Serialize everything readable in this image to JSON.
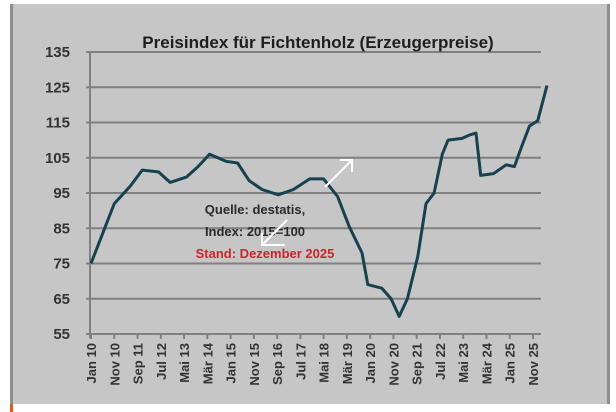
{
  "chart_data": {
    "type": "line",
    "title": "Preisindex für Fichtenholz  (Erzeugerpreise)",
    "xlabel": "",
    "ylabel": "",
    "ylim": [
      55,
      135
    ],
    "yticks": [
      55,
      65,
      75,
      85,
      95,
      105,
      115,
      125,
      135
    ],
    "x_unit": "months since Jan 2010",
    "xlim": [
      0,
      196
    ],
    "xtick_positions": [
      0,
      10,
      20,
      30,
      40,
      50,
      60,
      70,
      80,
      90,
      100,
      110,
      120,
      130,
      140,
      150,
      160,
      170,
      180,
      190
    ],
    "xtick_labels": [
      "Jan 10",
      "Nov 10",
      "Sep 11",
      "Jul 12",
      "Mai 13",
      "Mär 14",
      "Jan 15",
      "Nov 15",
      "Sep 16",
      "Jul 17",
      "Mai 18",
      "Mär 19",
      "Jan 20",
      "Nov 20",
      "Sep 21",
      "Jul 22",
      "Mai 23",
      "Mär 24",
      "Jan 25",
      "Nov 25"
    ],
    "grid": true,
    "series": [
      {
        "name": "Preisindex Fichtenholz",
        "color": "#17414f",
        "x": [
          0,
          10,
          17,
          22,
          29,
          34,
          41,
          46,
          51,
          58,
          63,
          68,
          73.5,
          80.5,
          87,
          94,
          100,
          106,
          111,
          116.5,
          119,
          125,
          129,
          132.5,
          136,
          140.5,
          144,
          147.5,
          151,
          153.5,
          159.5,
          163,
          165.5,
          167.5,
          173,
          178.5,
          182,
          185,
          188.5,
          192,
          196
        ],
        "y": [
          75,
          92,
          97,
          101.5,
          101,
          98,
          99.5,
          102.5,
          106,
          104,
          103.5,
          98.5,
          96,
          94.5,
          96,
          99,
          99,
          94,
          85.5,
          78,
          69,
          68,
          65,
          60,
          65,
          77,
          92,
          95,
          106,
          110,
          110.5,
          111.5,
          112,
          100,
          100.5,
          103,
          102.5,
          108,
          114,
          115.5,
          125.5
        ]
      }
    ],
    "annotations": {
      "source_line1": "Quelle: destatis,",
      "source_line2": "Index: 2015=100",
      "status": "Stand: Dezember 2025"
    }
  }
}
